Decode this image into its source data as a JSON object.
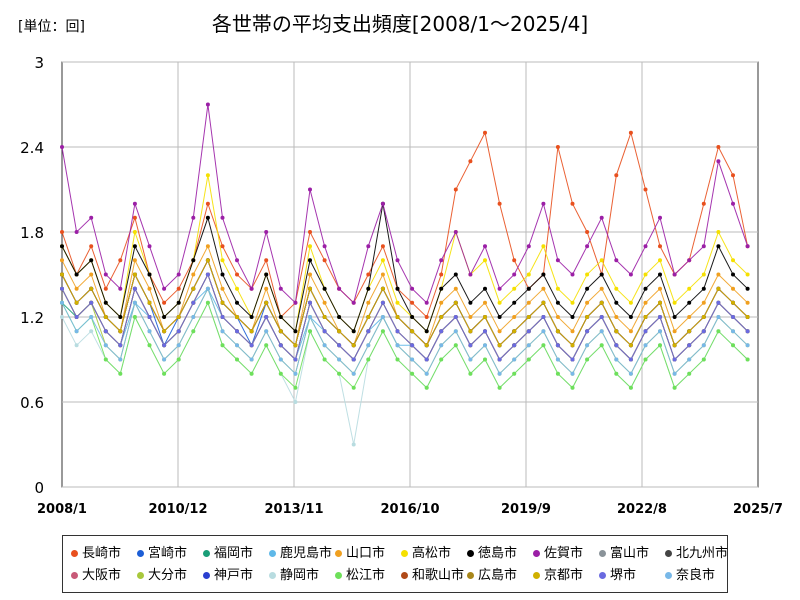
{
  "unit_label": "[単位：回]",
  "chart_data": {
    "type": "line",
    "title": "各世帯の平均支出頻度[2008/1〜2025/4]",
    "xlabel": "",
    "ylabel": "",
    "ylim": [
      0,
      3
    ],
    "yticks": [
      "0",
      "0.6",
      "1.2",
      "1.8",
      "2.4",
      "3"
    ],
    "xticks": [
      "2008/1",
      "2010/12",
      "2013/11",
      "2016/10",
      "2019/9",
      "2022/8",
      "2025/7"
    ],
    "grid": true,
    "legend_position": "bottom",
    "series": [
      {
        "name": "長崎市",
        "color": "#e8501e",
        "values": [
          1.8,
          1.5,
          1.7,
          1.4,
          1.6,
          1.9,
          1.5,
          1.3,
          1.4,
          1.6,
          2.0,
          1.7,
          1.5,
          1.4,
          1.6,
          1.2,
          1.3,
          1.8,
          1.6,
          1.4,
          1.3,
          1.5,
          1.7,
          1.4,
          1.3,
          1.2,
          1.5,
          2.1,
          2.3,
          2.5,
          2.0,
          1.6,
          1.4,
          1.5,
          2.4,
          2.0,
          1.8,
          1.5,
          2.2,
          2.5,
          2.1,
          1.7,
          1.5,
          1.6,
          2.0,
          2.4,
          2.2,
          1.7
        ]
      },
      {
        "name": "宮崎市",
        "color": "#1c5ed6",
        "values": [
          1.5,
          1.3,
          1.4,
          1.2,
          1.1,
          1.5,
          1.3,
          1.0,
          1.2,
          1.4,
          1.6,
          1.3,
          1.2,
          1.0,
          1.3,
          1.1,
          1.0,
          1.4,
          1.2,
          1.1,
          1.0,
          1.2,
          1.4,
          1.2,
          1.1,
          1.0,
          1.2,
          1.3,
          1.1,
          1.2,
          1.0,
          1.1,
          1.2,
          1.3,
          1.1,
          1.0,
          1.2,
          1.3,
          1.1,
          1.0,
          1.2,
          1.3,
          1.0,
          1.1,
          1.2,
          1.4,
          1.3,
          1.2
        ]
      },
      {
        "name": "福岡市",
        "color": "#1a9e78",
        "values": [
          1.3,
          1.2,
          1.3,
          1.1,
          1.0,
          1.4,
          1.2,
          1.0,
          1.1,
          1.3,
          1.5,
          1.2,
          1.1,
          1.0,
          1.2,
          1.0,
          0.9,
          1.3,
          1.1,
          1.0,
          0.9,
          1.1,
          1.3,
          1.1,
          1.0,
          0.9,
          1.1,
          1.2,
          1.0,
          1.1,
          0.9,
          1.0,
          1.1,
          1.2,
          1.0,
          0.9,
          1.1,
          1.2,
          1.0,
          0.9,
          1.1,
          1.2,
          0.9,
          1.0,
          1.1,
          1.3,
          1.2,
          1.1
        ]
      },
      {
        "name": "鹿児島市",
        "color": "#5fb8e8",
        "values": [
          1.4,
          1.2,
          1.3,
          1.1,
          1.0,
          1.3,
          1.2,
          1.0,
          1.1,
          1.3,
          1.4,
          1.2,
          1.1,
          1.0,
          1.2,
          1.0,
          0.9,
          1.2,
          1.1,
          1.0,
          0.9,
          1.1,
          1.2,
          1.0,
          1.0,
          0.9,
          1.1,
          1.2,
          1.0,
          1.1,
          0.9,
          1.0,
          1.1,
          1.2,
          1.0,
          0.9,
          1.1,
          1.2,
          1.0,
          0.9,
          1.1,
          1.2,
          0.9,
          1.0,
          1.1,
          1.3,
          1.2,
          1.1
        ]
      },
      {
        "name": "山口市",
        "color": "#f0a020",
        "values": [
          1.6,
          1.4,
          1.5,
          1.2,
          1.1,
          1.6,
          1.4,
          1.1,
          1.2,
          1.5,
          1.7,
          1.4,
          1.2,
          1.1,
          1.4,
          1.1,
          1.0,
          1.5,
          1.3,
          1.1,
          1.0,
          1.3,
          1.5,
          1.2,
          1.1,
          1.0,
          1.3,
          1.4,
          1.2,
          1.3,
          1.1,
          1.2,
          1.3,
          1.4,
          1.2,
          1.1,
          1.3,
          1.4,
          1.2,
          1.1,
          1.3,
          1.4,
          1.1,
          1.2,
          1.3,
          1.5,
          1.4,
          1.3
        ]
      },
      {
        "name": "高松市",
        "color": "#f5e000",
        "values": [
          1.7,
          1.5,
          1.6,
          1.3,
          1.2,
          1.8,
          1.5,
          1.2,
          1.3,
          1.6,
          2.2,
          1.6,
          1.4,
          1.2,
          1.5,
          1.2,
          1.1,
          1.7,
          1.4,
          1.2,
          1.1,
          1.4,
          1.6,
          1.3,
          1.2,
          1.1,
          1.4,
          1.8,
          1.5,
          1.6,
          1.3,
          1.4,
          1.5,
          1.7,
          1.4,
          1.3,
          1.5,
          1.6,
          1.4,
          1.3,
          1.5,
          1.6,
          1.3,
          1.4,
          1.5,
          1.8,
          1.6,
          1.5
        ]
      },
      {
        "name": "徳島市",
        "color": "#000000",
        "values": [
          1.7,
          1.5,
          1.6,
          1.3,
          1.2,
          1.7,
          1.5,
          1.2,
          1.3,
          1.6,
          1.9,
          1.5,
          1.3,
          1.2,
          1.5,
          1.2,
          1.1,
          1.6,
          1.4,
          1.2,
          1.1,
          1.4,
          2.0,
          1.4,
          1.2,
          1.1,
          1.4,
          1.5,
          1.3,
          1.4,
          1.2,
          1.3,
          1.4,
          1.5,
          1.3,
          1.2,
          1.4,
          1.5,
          1.3,
          1.2,
          1.4,
          1.5,
          1.2,
          1.3,
          1.4,
          1.7,
          1.5,
          1.4
        ]
      },
      {
        "name": "佐賀市",
        "color": "#9b1fa6",
        "values": [
          2.4,
          1.8,
          1.9,
          1.5,
          1.4,
          2.0,
          1.7,
          1.4,
          1.5,
          1.9,
          2.7,
          1.9,
          1.6,
          1.4,
          1.8,
          1.4,
          1.3,
          2.1,
          1.7,
          1.4,
          1.3,
          1.7,
          2.0,
          1.6,
          1.4,
          1.3,
          1.6,
          1.8,
          1.5,
          1.7,
          1.4,
          1.5,
          1.7,
          2.0,
          1.6,
          1.5,
          1.7,
          1.9,
          1.6,
          1.5,
          1.7,
          1.9,
          1.5,
          1.6,
          1.7,
          2.3,
          2.0,
          1.7
        ]
      },
      {
        "name": "富山市",
        "color": "#8a9399",
        "values": [
          1.4,
          1.2,
          1.3,
          1.1,
          1.0,
          1.4,
          1.2,
          1.0,
          1.1,
          1.3,
          1.5,
          1.2,
          1.1,
          1.0,
          1.2,
          1.0,
          0.9,
          1.3,
          1.1,
          1.0,
          0.9,
          1.1,
          1.3,
          1.1,
          1.0,
          0.9,
          1.1,
          1.2,
          1.0,
          1.1,
          0.9,
          1.0,
          1.1,
          1.2,
          1.0,
          0.9,
          1.1,
          1.2,
          1.0,
          0.9,
          1.1,
          1.2,
          0.9,
          1.0,
          1.1,
          1.3,
          1.2,
          1.1
        ]
      },
      {
        "name": "北九州市",
        "color": "#444444",
        "values": [
          1.5,
          1.3,
          1.4,
          1.2,
          1.1,
          1.5,
          1.3,
          1.1,
          1.2,
          1.4,
          1.6,
          1.3,
          1.2,
          1.1,
          1.3,
          1.1,
          1.0,
          1.4,
          1.2,
          1.1,
          1.0,
          1.2,
          1.4,
          1.2,
          1.1,
          1.0,
          1.2,
          1.3,
          1.1,
          1.2,
          1.0,
          1.1,
          1.2,
          1.3,
          1.1,
          1.0,
          1.2,
          1.3,
          1.1,
          1.0,
          1.2,
          1.3,
          1.0,
          1.1,
          1.2,
          1.4,
          1.3,
          1.2
        ]
      },
      {
        "name": "大阪市",
        "color": "#c85a78",
        "values": [
          1.4,
          1.2,
          1.3,
          1.1,
          1.0,
          1.4,
          1.2,
          1.0,
          1.1,
          1.3,
          1.5,
          1.2,
          1.1,
          1.0,
          1.2,
          1.0,
          0.9,
          1.3,
          1.1,
          1.0,
          0.9,
          1.1,
          1.3,
          1.1,
          1.0,
          0.9,
          1.1,
          1.2,
          1.0,
          1.1,
          0.9,
          1.0,
          1.1,
          1.2,
          1.0,
          0.9,
          1.1,
          1.2,
          1.0,
          0.9,
          1.1,
          1.2,
          0.9,
          1.0,
          1.1,
          1.3,
          1.2,
          1.1
        ]
      },
      {
        "name": "大分市",
        "color": "#a8c83c",
        "values": [
          1.4,
          1.2,
          1.3,
          1.0,
          0.9,
          1.3,
          1.1,
          0.9,
          1.0,
          1.2,
          1.4,
          1.1,
          1.0,
          0.9,
          1.1,
          0.9,
          0.8,
          1.2,
          1.0,
          0.9,
          0.8,
          1.0,
          1.2,
          1.0,
          0.9,
          0.8,
          1.0,
          1.1,
          0.9,
          1.0,
          0.8,
          0.9,
          1.0,
          1.1,
          0.9,
          0.8,
          1.0,
          1.1,
          0.9,
          0.8,
          1.0,
          1.1,
          0.8,
          0.9,
          1.0,
          1.2,
          1.1,
          1.0
        ]
      },
      {
        "name": "神戸市",
        "color": "#2a3fd0",
        "values": [
          1.5,
          1.3,
          1.4,
          1.2,
          1.1,
          1.5,
          1.3,
          1.1,
          1.2,
          1.4,
          1.6,
          1.3,
          1.2,
          1.1,
          1.3,
          1.1,
          1.0,
          1.4,
          1.2,
          1.1,
          1.0,
          1.2,
          1.4,
          1.2,
          1.1,
          1.0,
          1.2,
          1.3,
          1.1,
          1.2,
          1.0,
          1.1,
          1.2,
          1.3,
          1.1,
          1.0,
          1.2,
          1.3,
          1.1,
          1.0,
          1.2,
          1.3,
          1.0,
          1.1,
          1.2,
          1.4,
          1.3,
          1.2
        ]
      },
      {
        "name": "静岡市",
        "color": "#b8dce0",
        "values": [
          1.2,
          1.0,
          1.1,
          0.9,
          0.8,
          1.2,
          1.0,
          0.8,
          0.9,
          1.1,
          1.3,
          1.0,
          0.9,
          0.8,
          1.0,
          0.8,
          0.6,
          1.1,
          0.9,
          0.8,
          0.3,
          0.9,
          1.1,
          0.9,
          0.8,
          0.7,
          0.9,
          1.0,
          0.8,
          0.9,
          0.7,
          0.8,
          0.9,
          1.0,
          0.8,
          0.7,
          0.9,
          1.0,
          0.8,
          0.7,
          0.9,
          1.0,
          0.7,
          0.8,
          0.9,
          1.1,
          1.0,
          0.9
        ]
      },
      {
        "name": "松江市",
        "color": "#6ee05a",
        "values": [
          1.3,
          1.1,
          1.2,
          0.9,
          0.8,
          1.2,
          1.0,
          0.8,
          0.9,
          1.1,
          1.3,
          1.0,
          0.9,
          0.8,
          1.0,
          0.8,
          0.7,
          1.1,
          0.9,
          0.8,
          0.7,
          0.9,
          1.1,
          0.9,
          0.8,
          0.7,
          0.9,
          1.0,
          0.8,
          0.9,
          0.7,
          0.8,
          0.9,
          1.0,
          0.8,
          0.7,
          0.9,
          1.0,
          0.8,
          0.7,
          0.9,
          1.0,
          0.7,
          0.8,
          0.9,
          1.1,
          1.0,
          0.9
        ]
      },
      {
        "name": "和歌山市",
        "color": "#b04a18",
        "values": [
          1.5,
          1.3,
          1.4,
          1.2,
          1.1,
          1.5,
          1.3,
          1.1,
          1.2,
          1.4,
          1.6,
          1.3,
          1.2,
          1.1,
          1.3,
          1.1,
          1.0,
          1.4,
          1.2,
          1.1,
          1.0,
          1.2,
          1.4,
          1.2,
          1.1,
          1.0,
          1.2,
          1.3,
          1.1,
          1.2,
          1.0,
          1.1,
          1.2,
          1.3,
          1.1,
          1.0,
          1.2,
          1.3,
          1.1,
          1.0,
          1.2,
          1.3,
          1.0,
          1.1,
          1.2,
          1.4,
          1.3,
          1.2
        ]
      },
      {
        "name": "広島市",
        "color": "#a8861a",
        "values": [
          1.4,
          1.2,
          1.3,
          1.1,
          1.0,
          1.4,
          1.2,
          1.0,
          1.1,
          1.3,
          1.5,
          1.2,
          1.1,
          1.0,
          1.2,
          1.0,
          0.9,
          1.3,
          1.1,
          1.0,
          0.9,
          1.1,
          1.3,
          1.1,
          1.0,
          0.9,
          1.1,
          1.2,
          1.0,
          1.1,
          0.9,
          1.0,
          1.1,
          1.2,
          1.0,
          0.9,
          1.1,
          1.2,
          1.0,
          0.9,
          1.1,
          1.2,
          0.9,
          1.0,
          1.1,
          1.3,
          1.2,
          1.1
        ]
      },
      {
        "name": "京都市",
        "color": "#d0b000",
        "values": [
          1.5,
          1.3,
          1.4,
          1.2,
          1.1,
          1.5,
          1.3,
          1.1,
          1.2,
          1.4,
          1.6,
          1.3,
          1.2,
          1.1,
          1.3,
          1.1,
          1.0,
          1.4,
          1.2,
          1.1,
          1.0,
          1.2,
          1.4,
          1.2,
          1.1,
          1.0,
          1.2,
          1.3,
          1.1,
          1.2,
          1.0,
          1.1,
          1.2,
          1.3,
          1.1,
          1.0,
          1.2,
          1.3,
          1.1,
          1.0,
          1.2,
          1.3,
          1.0,
          1.1,
          1.2,
          1.4,
          1.3,
          1.2
        ]
      },
      {
        "name": "堺市",
        "color": "#6a6ae0",
        "values": [
          1.4,
          1.2,
          1.3,
          1.1,
          1.0,
          1.4,
          1.2,
          1.0,
          1.1,
          1.3,
          1.5,
          1.2,
          1.1,
          1.0,
          1.2,
          1.0,
          0.9,
          1.3,
          1.1,
          1.0,
          0.9,
          1.1,
          1.3,
          1.1,
          1.0,
          0.9,
          1.1,
          1.2,
          1.0,
          1.1,
          0.9,
          1.0,
          1.1,
          1.2,
          1.0,
          0.9,
          1.1,
          1.2,
          1.0,
          0.9,
          1.1,
          1.2,
          0.9,
          1.0,
          1.1,
          1.3,
          1.2,
          1.1
        ]
      },
      {
        "name": "奈良市",
        "color": "#78b8e8",
        "values": [
          1.3,
          1.1,
          1.2,
          1.0,
          0.9,
          1.3,
          1.1,
          0.9,
          1.0,
          1.2,
          1.4,
          1.1,
          1.0,
          0.9,
          1.1,
          0.9,
          0.8,
          1.2,
          1.0,
          0.9,
          0.8,
          1.0,
          1.2,
          1.0,
          0.9,
          0.8,
          1.0,
          1.1,
          0.9,
          1.0,
          0.8,
          0.9,
          1.0,
          1.1,
          0.9,
          0.8,
          1.0,
          1.1,
          0.9,
          0.8,
          1.0,
          1.1,
          0.8,
          0.9,
          1.0,
          1.2,
          1.1,
          1.0
        ]
      }
    ]
  }
}
